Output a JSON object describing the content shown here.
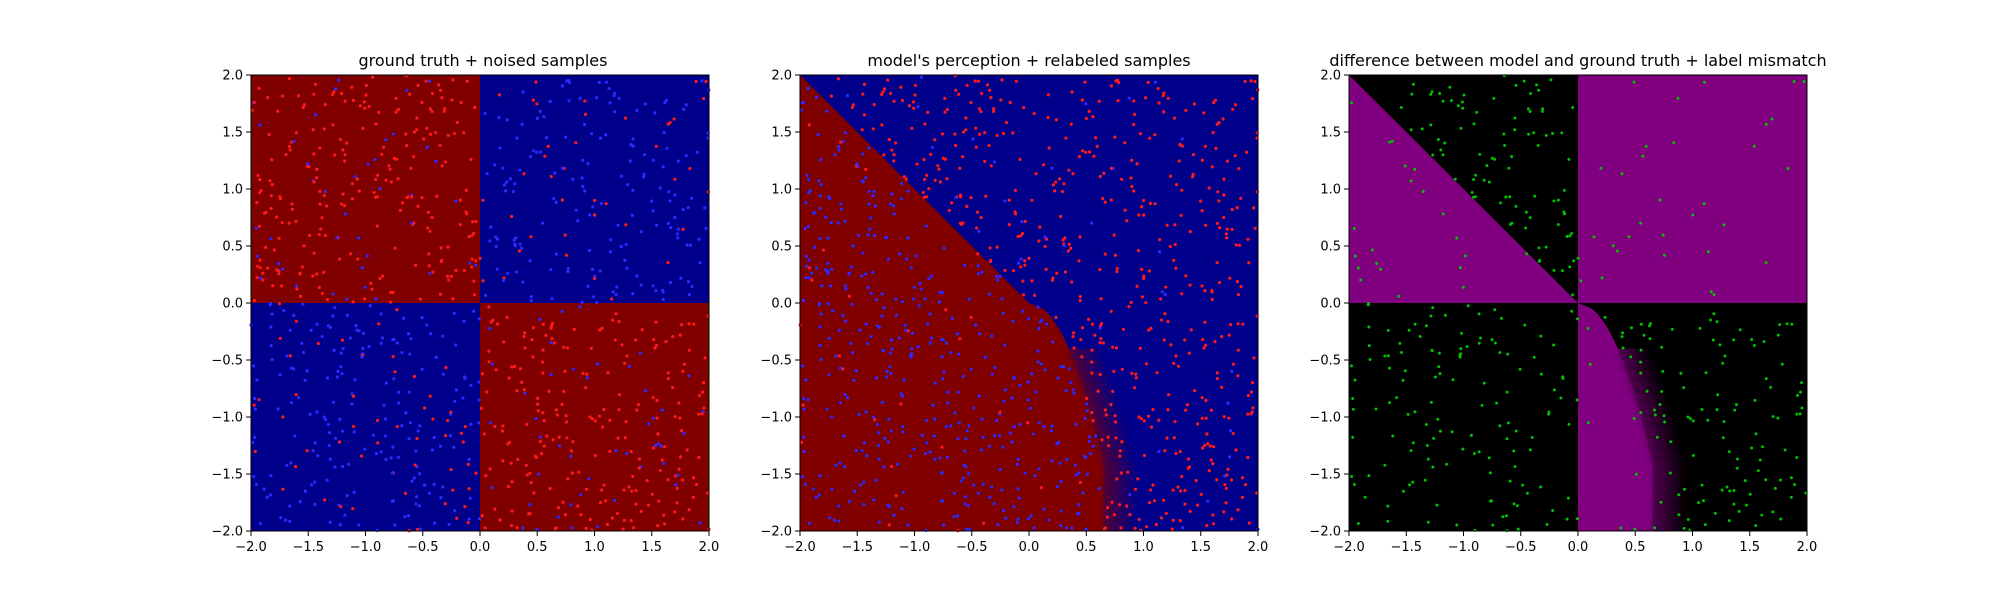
{
  "figure": {
    "background": "#ffffff"
  },
  "colors": {
    "class_red": "#800000",
    "class_blue": "#00008b",
    "point_red": "#ff1a1a",
    "point_blue": "#2a2aff",
    "diff_magenta": "#800080",
    "diff_black": "#000000",
    "mismatch_green": "#00c000"
  },
  "chart_data": [
    {
      "type": "scatter",
      "title": "ground truth + noised samples",
      "xlabel": "",
      "ylabel": "",
      "xlim": [
        -2.0,
        2.0
      ],
      "ylim": [
        -2.0,
        2.0
      ],
      "xticks": [
        "−2.0",
        "−1.5",
        "−1.0",
        "−0.5",
        "0.0",
        "0.5",
        "1.0",
        "1.5",
        "2.0"
      ],
      "yticks": [
        "−2.0",
        "−1.5",
        "−1.0",
        "−0.5",
        "0.0",
        "0.5",
        "1.0",
        "1.5",
        "2.0"
      ],
      "background": "quadrant checkerboard: x*y<0 red, x*y>0 blue",
      "regions": [
        {
          "quadrant": "top-left",
          "x": [
            -2,
            0
          ],
          "y": [
            0,
            2
          ],
          "color": "#800000"
        },
        {
          "quadrant": "top-right",
          "x": [
            0,
            2
          ],
          "y": [
            0,
            2
          ],
          "color": "#00008b"
        },
        {
          "quadrant": "bottom-left",
          "x": [
            -2,
            0
          ],
          "y": [
            -2,
            0
          ],
          "color": "#00008b"
        },
        {
          "quadrant": "bottom-right",
          "x": [
            0,
            2
          ],
          "y": [
            -2,
            0
          ],
          "color": "#800000"
        }
      ],
      "series": [
        {
          "color": "#ff1a1a",
          "rule": "label x*y<0 (red) with ~20% noise flipped",
          "point_count": 1000
        },
        {
          "color": "#2a2aff",
          "rule": "label x*y>0 (blue) with ~20% noise flipped",
          "point_count": 1000
        }
      ],
      "grid": false,
      "legend": "none"
    },
    {
      "type": "scatter",
      "title": "model's perception + relabeled samples",
      "xlabel": "",
      "ylabel": "",
      "xlim": [
        -2.0,
        2.0
      ],
      "ylim": [
        -2.0,
        2.0
      ],
      "xticks": [
        "−2.0",
        "−1.5",
        "−1.0",
        "−0.5",
        "0.0",
        "0.5",
        "1.0",
        "1.5",
        "2.0"
      ],
      "yticks": [
        "−2.0",
        "−1.5",
        "−1.0",
        "−0.5",
        "0.0",
        "0.5",
        "1.0",
        "1.5",
        "2.0"
      ],
      "background": "model boundary: red below line y = -x (upper-left half), curving to x≈0.5–0.8 at y<-0.5; blue elsewhere",
      "decision_boundary": {
        "upper": "y = -x for y >= 0",
        "lower": "x ≈ 0.4..0.8 for y in [-2, -0.5]"
      },
      "series": [
        {
          "color": "#ff1a1a",
          "rule": "relabeled red = model predicts opposite of region",
          "point_count": 1000
        },
        {
          "color": "#2a2aff",
          "rule": "relabeled blue",
          "point_count": 1000
        }
      ],
      "grid": false,
      "legend": "none"
    },
    {
      "type": "scatter",
      "title": "difference between model and ground truth + label mismatch",
      "xlabel": "",
      "ylabel": "",
      "xlim": [
        -2.0,
        2.0
      ],
      "ylim": [
        -2.0,
        2.0
      ],
      "xticks": [
        "−2.0",
        "−1.5",
        "−1.0",
        "−0.5",
        "0.0",
        "0.5",
        "1.0",
        "1.5",
        "2.0"
      ],
      "yticks": [
        "−2.0",
        "−1.5",
        "−1.0",
        "−0.5",
        "0.0",
        "0.5",
        "1.0",
        "1.5",
        "2.0"
      ],
      "background": "magenta where model differs from ground truth, black where equal",
      "regions": [
        {
          "area": "upper-left below y=-x",
          "color": "#800080"
        },
        {
          "area": "top-right quadrant",
          "color": "#800080"
        },
        {
          "area": "bottom-right wedge between x=0 and model boundary",
          "color": "#800080"
        }
      ],
      "series": [
        {
          "color": "#00c000",
          "rule": "samples whose label mismatches",
          "point_count": 400
        }
      ],
      "grid": false,
      "legend": "none"
    }
  ]
}
